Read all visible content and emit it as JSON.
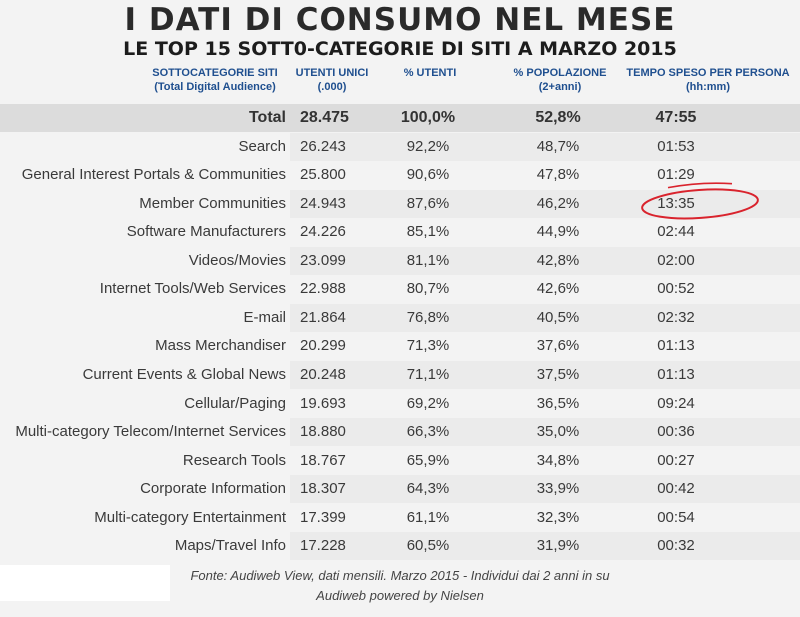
{
  "header": {
    "title": "I DATI DI CONSUMO NEL MESE",
    "subtitle": "LE TOP 15 SOTT0-CATEGORIE DI SITI A MARZO 2015"
  },
  "columns": {
    "category_line1": "SOTTOCATEGORIE SITI",
    "category_line2": "(Total Digital Audience)",
    "users_line1": "UTENTI UNICI",
    "users_line2": "(.000)",
    "pct_users": "% UTENTI",
    "pct_pop_line1": "% POPOLAZIONE",
    "pct_pop_line2": "(2+anni)",
    "time_line1": "TEMPO SPESO PER PERSONA",
    "time_line2": "(hh:mm)"
  },
  "chart_data": {
    "type": "table",
    "title": "I DATI DI CONSUMO NEL MESE",
    "subtitle": "LE TOP 15 SOTT0-CATEGORIE DI SITI A MARZO 2015",
    "total": {
      "label": "Total",
      "users": "28.475",
      "pct_users": "100,0%",
      "pct_pop": "52,8%",
      "time": "47:55"
    },
    "rows": [
      {
        "label": "Search",
        "users": "26.243",
        "pct_users": "92,2%",
        "pct_pop": "48,7%",
        "time": "01:53"
      },
      {
        "label": "General Interest Portals & Communities",
        "users": "25.800",
        "pct_users": "90,6%",
        "pct_pop": "47,8%",
        "time": "01:29"
      },
      {
        "label": "Member Communities",
        "users": "24.943",
        "pct_users": "87,6%",
        "pct_pop": "46,2%",
        "time": "13:35"
      },
      {
        "label": "Software Manufacturers",
        "users": "24.226",
        "pct_users": "85,1%",
        "pct_pop": "44,9%",
        "time": "02:44"
      },
      {
        "label": "Videos/Movies",
        "users": "23.099",
        "pct_users": "81,1%",
        "pct_pop": "42,8%",
        "time": "02:00"
      },
      {
        "label": "Internet Tools/Web Services",
        "users": "22.988",
        "pct_users": "80,7%",
        "pct_pop": "42,6%",
        "time": "00:52"
      },
      {
        "label": "E-mail",
        "users": "21.864",
        "pct_users": "76,8%",
        "pct_pop": "40,5%",
        "time": "02:32"
      },
      {
        "label": "Mass Merchandiser",
        "users": "20.299",
        "pct_users": "71,3%",
        "pct_pop": "37,6%",
        "time": "01:13"
      },
      {
        "label": "Current Events & Global News",
        "users": "20.248",
        "pct_users": "71,1%",
        "pct_pop": "37,5%",
        "time": "01:13"
      },
      {
        "label": "Cellular/Paging",
        "users": "19.693",
        "pct_users": "69,2%",
        "pct_pop": "36,5%",
        "time": "09:24"
      },
      {
        "label": "Multi-category Telecom/Internet Services",
        "users": "18.880",
        "pct_users": "66,3%",
        "pct_pop": "35,0%",
        "time": "00:36"
      },
      {
        "label": "Research Tools",
        "users": "18.767",
        "pct_users": "65,9%",
        "pct_pop": "34,8%",
        "time": "00:27"
      },
      {
        "label": "Corporate Information",
        "users": "18.307",
        "pct_users": "64,3%",
        "pct_pop": "33,9%",
        "time": "00:42"
      },
      {
        "label": "Multi-category Entertainment",
        "users": "17.399",
        "pct_users": "61,1%",
        "pct_pop": "32,3%",
        "time": "00:54"
      },
      {
        "label": "Maps/Travel Info",
        "users": "17.228",
        "pct_users": "60,5%",
        "pct_pop": "31,9%",
        "time": "00:32"
      }
    ],
    "highlight_row": "Member Communities",
    "highlight_color": "#d9232d"
  },
  "footer": {
    "line1": "Fonte: Audiweb View, dati mensili. Marzo 2015 - Individui dai 2 anni in su",
    "line2": "Audiweb powered by Nielsen"
  },
  "colors": {
    "header_blue": "#1f4f8f",
    "annotation_red": "#d9232d"
  }
}
